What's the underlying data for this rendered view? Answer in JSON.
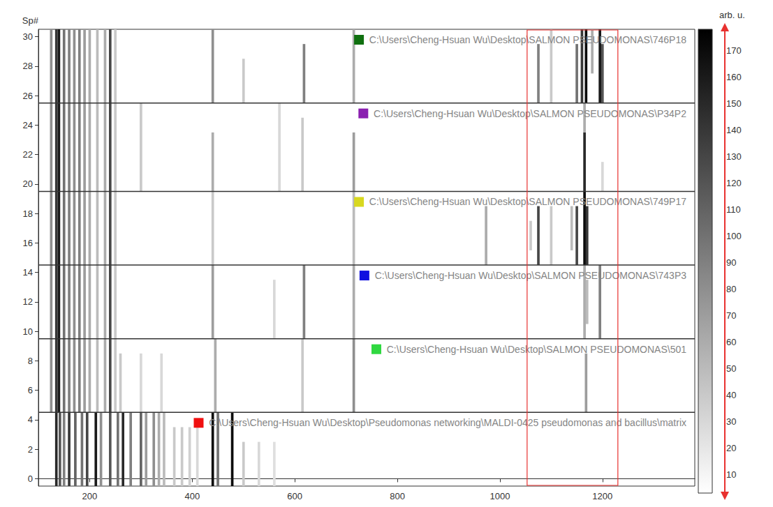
{
  "chart_data": {
    "type": "heatmap",
    "y_label": "Sp#",
    "xlim": [
      100,
      1380
    ],
    "xticks": [
      200,
      400,
      600,
      800,
      1000,
      1200
    ],
    "ylim": [
      -0.5,
      30.5
    ],
    "yticks": [
      0,
      2,
      4,
      6,
      8,
      10,
      12,
      14,
      16,
      18,
      20,
      22,
      24,
      26,
      28,
      30
    ],
    "groups": [
      {
        "label": "C:\\Users\\Cheng-Hsuan Wu\\Desktop\\Pseudomonas networking\\MALDI-0425 pseudomonas and bacillus\\matrix",
        "color": "#f01010",
        "spectra": [
          0,
          4
        ],
        "bands": [
          [
            135,
            0,
            4,
            150
          ],
          [
            142,
            0,
            4,
            120
          ],
          [
            150,
            0,
            4,
            90
          ],
          [
            160,
            0,
            4,
            140
          ],
          [
            172,
            0,
            4,
            110
          ],
          [
            185,
            0,
            4,
            100
          ],
          [
            195,
            0,
            4,
            130
          ],
          [
            212,
            0,
            4,
            160
          ],
          [
            222,
            0,
            4,
            80
          ],
          [
            240,
            0,
            4,
            120
          ],
          [
            255,
            0,
            4,
            100
          ],
          [
            265,
            0,
            4,
            150
          ],
          [
            280,
            0,
            4,
            90
          ],
          [
            300,
            0,
            4,
            110
          ],
          [
            310,
            0,
            4,
            70
          ],
          [
            325,
            0,
            4,
            80
          ],
          [
            335,
            0,
            4,
            60
          ],
          [
            345,
            0,
            4,
            50
          ],
          [
            365,
            0,
            3,
            40
          ],
          [
            380,
            0,
            3,
            40
          ],
          [
            395,
            0,
            3,
            35
          ],
          [
            410,
            0,
            3,
            30
          ],
          [
            440,
            0,
            4,
            170
          ],
          [
            450,
            0,
            4,
            100
          ],
          [
            478,
            0,
            4,
            170
          ],
          [
            500,
            0,
            2,
            40
          ],
          [
            530,
            0,
            2,
            30
          ],
          [
            560,
            0,
            2,
            25
          ]
        ]
      },
      {
        "label": "C:\\Users\\Cheng-Hsuan Wu\\Desktop\\SALMON PSEUDOMONAS\\501",
        "color": "#30d840",
        "spectra": [
          5,
          9
        ],
        "bands": [
          [
            125,
            5,
            9,
            80
          ],
          [
            135,
            5,
            9,
            140
          ],
          [
            140,
            5,
            9,
            160
          ],
          [
            150,
            5,
            9,
            100
          ],
          [
            160,
            5,
            9,
            90
          ],
          [
            170,
            5,
            9,
            80
          ],
          [
            180,
            5,
            9,
            90
          ],
          [
            190,
            5,
            9,
            70
          ],
          [
            200,
            5,
            9,
            60
          ],
          [
            215,
            5,
            9,
            50
          ],
          [
            230,
            5,
            9,
            60
          ],
          [
            240,
            5,
            9,
            130
          ],
          [
            250,
            5,
            9,
            40
          ],
          [
            260,
            5,
            8,
            40
          ],
          [
            300,
            5,
            8,
            30
          ],
          [
            340,
            5,
            8,
            30
          ],
          [
            445,
            5,
            9,
            60
          ],
          [
            615,
            5,
            9,
            40
          ],
          [
            715,
            5,
            9,
            80
          ],
          [
            1168,
            5,
            8,
            70
          ]
        ]
      },
      {
        "label": "C:\\Users\\Cheng-Hsuan Wu\\Desktop\\SALMON PSEUDOMONAS\\743P3",
        "color": "#1010e0",
        "spectra": [
          10,
          14
        ],
        "bands": [
          [
            125,
            10,
            14,
            80
          ],
          [
            135,
            10,
            14,
            140
          ],
          [
            140,
            10,
            14,
            160
          ],
          [
            150,
            10,
            14,
            100
          ],
          [
            160,
            10,
            14,
            90
          ],
          [
            170,
            10,
            14,
            80
          ],
          [
            180,
            10,
            14,
            90
          ],
          [
            190,
            10,
            14,
            70
          ],
          [
            200,
            10,
            14,
            60
          ],
          [
            215,
            10,
            14,
            50
          ],
          [
            230,
            10,
            14,
            60
          ],
          [
            240,
            10,
            14,
            130
          ],
          [
            250,
            10,
            14,
            40
          ],
          [
            440,
            10,
            14,
            70
          ],
          [
            560,
            10,
            13,
            30
          ],
          [
            618,
            10,
            14,
            90
          ],
          [
            715,
            10,
            14,
            60
          ],
          [
            1165,
            10,
            14,
            60
          ],
          [
            1170,
            11,
            13,
            50
          ],
          [
            1195,
            10,
            14,
            90
          ]
        ]
      },
      {
        "label": "C:\\Users\\Cheng-Hsuan Wu\\Desktop\\SALMON PSEUDOMONAS\\749P17",
        "color": "#d8d820",
        "spectra": [
          15,
          19
        ],
        "bands": [
          [
            125,
            15,
            19,
            80
          ],
          [
            135,
            15,
            19,
            140
          ],
          [
            140,
            15,
            19,
            160
          ],
          [
            150,
            15,
            19,
            100
          ],
          [
            160,
            15,
            19,
            90
          ],
          [
            170,
            15,
            19,
            80
          ],
          [
            180,
            15,
            19,
            90
          ],
          [
            190,
            15,
            19,
            70
          ],
          [
            200,
            15,
            19,
            60
          ],
          [
            215,
            15,
            19,
            50
          ],
          [
            230,
            15,
            19,
            60
          ],
          [
            240,
            15,
            19,
            130
          ],
          [
            250,
            15,
            19,
            40
          ],
          [
            440,
            15,
            19,
            40
          ],
          [
            715,
            15,
            19,
            50
          ],
          [
            973,
            15,
            18,
            60
          ],
          [
            1060,
            16,
            17,
            40
          ],
          [
            1075,
            15,
            18,
            130
          ],
          [
            1100,
            15,
            18,
            40
          ],
          [
            1140,
            16,
            18,
            50
          ],
          [
            1150,
            15,
            18,
            130
          ],
          [
            1165,
            15,
            19,
            170
          ],
          [
            1170,
            15,
            18,
            140
          ]
        ]
      },
      {
        "label": "C:\\Users\\Cheng-Hsuan Wu\\Desktop\\SALMON PSEUDOMONAS\\P34P2",
        "color": "#8a1fb0",
        "spectra": [
          20,
          25
        ],
        "bands": [
          [
            125,
            20,
            25,
            80
          ],
          [
            135,
            20,
            25,
            140
          ],
          [
            140,
            20,
            25,
            160
          ],
          [
            150,
            20,
            25,
            100
          ],
          [
            160,
            20,
            25,
            90
          ],
          [
            170,
            20,
            25,
            80
          ],
          [
            180,
            20,
            25,
            90
          ],
          [
            190,
            20,
            25,
            70
          ],
          [
            200,
            20,
            25,
            60
          ],
          [
            215,
            20,
            25,
            50
          ],
          [
            230,
            20,
            25,
            60
          ],
          [
            240,
            20,
            25,
            130
          ],
          [
            250,
            20,
            25,
            40
          ],
          [
            300,
            20,
            25,
            40
          ],
          [
            440,
            20,
            23,
            60
          ],
          [
            570,
            20,
            25,
            30
          ],
          [
            615,
            20,
            24,
            40
          ],
          [
            715,
            20,
            23,
            70
          ],
          [
            1165,
            20,
            23,
            150
          ],
          [
            1165,
            24,
            25,
            60
          ],
          [
            1200,
            20,
            21,
            30
          ]
        ]
      },
      {
        "label": "C:\\Users\\Cheng-Hsuan Wu\\Desktop\\SALMON PSEUDOMONAS\\746P18",
        "color": "#107010",
        "spectra": [
          26,
          30
        ],
        "bands": [
          [
            125,
            26,
            30,
            80
          ],
          [
            135,
            26,
            30,
            140
          ],
          [
            140,
            26,
            30,
            160
          ],
          [
            150,
            26,
            30,
            100
          ],
          [
            160,
            26,
            30,
            90
          ],
          [
            170,
            26,
            30,
            80
          ],
          [
            180,
            26,
            30,
            90
          ],
          [
            190,
            26,
            30,
            70
          ],
          [
            200,
            26,
            30,
            60
          ],
          [
            215,
            26,
            30,
            50
          ],
          [
            230,
            26,
            30,
            60
          ],
          [
            240,
            26,
            30,
            130
          ],
          [
            250,
            26,
            30,
            40
          ],
          [
            440,
            26,
            30,
            80
          ],
          [
            500,
            26,
            28,
            40
          ],
          [
            618,
            26,
            29,
            90
          ],
          [
            715,
            26,
            30,
            60
          ],
          [
            1075,
            26,
            29,
            90
          ],
          [
            1100,
            26,
            30,
            40
          ],
          [
            1150,
            26,
            29,
            100
          ],
          [
            1160,
            26,
            30,
            140
          ],
          [
            1168,
            26,
            30,
            170
          ],
          [
            1180,
            28,
            30,
            60
          ],
          [
            1195,
            26,
            30,
            160
          ],
          [
            1200,
            26,
            29,
            120
          ]
        ]
      }
    ],
    "highlight": {
      "x": [
        1053,
        1230
      ],
      "color": "#e8312f"
    },
    "colorbar": {
      "label": "arb. u.",
      "range": [
        3,
        178
      ],
      "ticks": [
        10,
        20,
        30,
        40,
        50,
        60,
        70,
        80,
        90,
        100,
        110,
        120,
        130,
        140,
        150,
        160,
        170
      ]
    }
  }
}
